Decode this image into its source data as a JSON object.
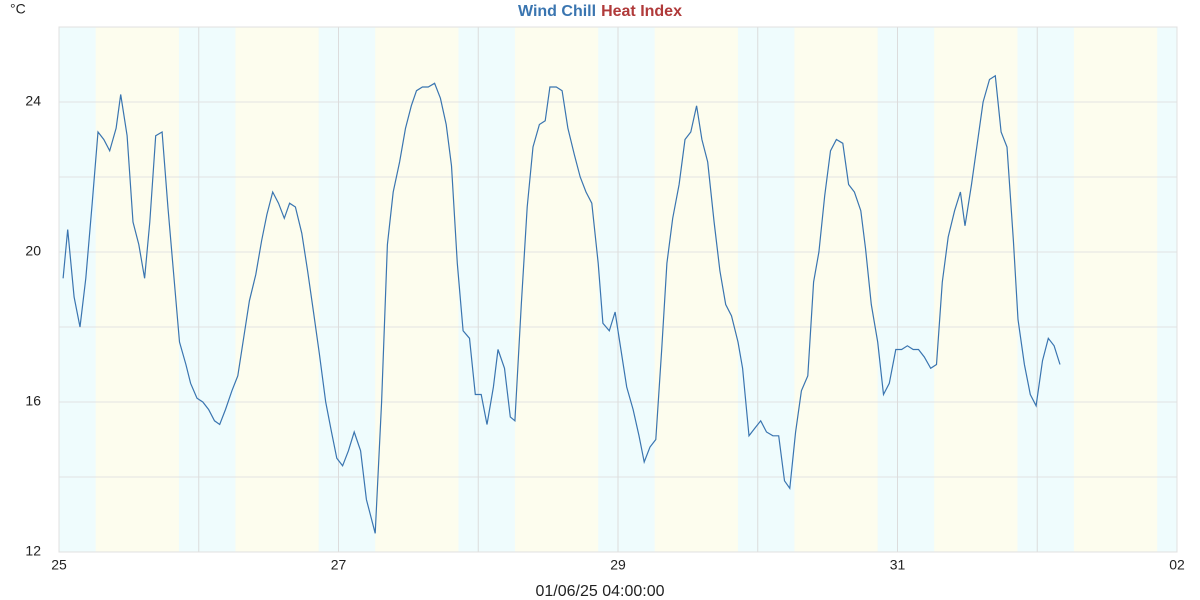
{
  "chart_data": {
    "type": "line",
    "legend": [
      {
        "name": "Wind Chill",
        "color": "#3a75b0"
      },
      {
        "name": "Heat Index",
        "color": "#b03a3a"
      }
    ],
    "y_unit": "°C",
    "x_label": "01/06/25 04:00:00",
    "xlim": [
      0,
      192
    ],
    "xticks": [
      {
        "value": 0,
        "label": "25"
      },
      {
        "value": 48,
        "label": "27"
      },
      {
        "value": 96,
        "label": "29"
      },
      {
        "value": 144,
        "label": "31"
      },
      {
        "value": 192,
        "label": "02"
      }
    ],
    "xminor_ticks": [
      24,
      72,
      120,
      168
    ],
    "ylim": [
      12,
      26
    ],
    "yticks": [
      12,
      16,
      20,
      24
    ],
    "yminor_ticks": [
      14,
      18,
      22,
      26
    ],
    "grid": true,
    "daylight": [
      [
        6.3,
        20.6
      ],
      [
        30.3,
        44.6
      ],
      [
        54.3,
        68.6
      ],
      [
        78.3,
        92.6
      ],
      [
        102.3,
        116.6
      ],
      [
        126.3,
        140.6
      ],
      [
        150.3,
        164.6
      ],
      [
        174.3,
        188.6
      ]
    ],
    "night_color": "#effcfd",
    "day_color": "#fdfdee",
    "series": [
      {
        "name": "Wind Chill",
        "color": "#3a75b0",
        "x": [
          0.7,
          1.5,
          2.6,
          3.6,
          4.6,
          5.7,
          6.7,
          7.7,
          8.7,
          9.8,
          10.6,
          11.7,
          12.7,
          13.7,
          14.7,
          15.6,
          16.6,
          17.7,
          18.7,
          19.7,
          20.7,
          21.8,
          22.6,
          23.7,
          24.7,
          25.7,
          26.7,
          27.6,
          28.6,
          29.7,
          30.7,
          31.7,
          32.7,
          33.8,
          34.8,
          35.7,
          36.7,
          37.7,
          38.7,
          39.6,
          40.6,
          41.7,
          42.7,
          43.7,
          44.7,
          45.8,
          46.8,
          47.7,
          48.7,
          49.7,
          50.7,
          51.8,
          52.8,
          54.3,
          55.4,
          56.4,
          57.4,
          58.5,
          59.5,
          60.5,
          61.4,
          62.4,
          63.4,
          64.5,
          65.5,
          66.5,
          67.4,
          68.4,
          69.4,
          70.5,
          71.5,
          72.5,
          73.5,
          74.6,
          75.4,
          76.5,
          77.5,
          78.3,
          79.4,
          80.4,
          81.4,
          82.5,
          83.5,
          84.3,
          85.4,
          86.4,
          87.4,
          88.5,
          89.5,
          90.5,
          91.5,
          92.6,
          93.4,
          94.5,
          95.5,
          96.5,
          97.5,
          98.6,
          99.6,
          100.5,
          101.5,
          102.5,
          103.5,
          104.4,
          105.4,
          106.5,
          107.5,
          108.5,
          109.5,
          110.4,
          111.4,
          112.5,
          113.5,
          114.5,
          115.5,
          116.6,
          117.4,
          118.5,
          119.5,
          120.5,
          121.5,
          122.6,
          123.6,
          124.6,
          125.5,
          126.5,
          127.5,
          128.6,
          129.6,
          130.5,
          131.5,
          132.5,
          133.5,
          134.6,
          135.6,
          136.6,
          137.7,
          138.5,
          139.5,
          140.6,
          141.6,
          142.6,
          143.7,
          144.7,
          145.7,
          146.7,
          147.6,
          148.6,
          149.7,
          150.7,
          151.7,
          152.7,
          153.8,
          154.8,
          155.6,
          156.7,
          157.7,
          158.7,
          159.8,
          160.8,
          161.8,
          162.8,
          163.9,
          164.7,
          165.8,
          166.8,
          167.8,
          168.9,
          169.9,
          170.9,
          171.9
        ],
        "values": [
          19.3,
          20.6,
          18.8,
          18.0,
          19.3,
          21.3,
          23.2,
          23.0,
          22.7,
          23.3,
          24.2,
          23.1,
          20.8,
          20.2,
          19.3,
          20.8,
          23.1,
          23.2,
          21.2,
          19.4,
          17.6,
          17.0,
          16.5,
          16.1,
          16.0,
          15.8,
          15.5,
          15.4,
          15.8,
          16.3,
          16.7,
          17.7,
          18.7,
          19.4,
          20.3,
          21.0,
          21.6,
          21.3,
          20.9,
          21.3,
          21.2,
          20.5,
          19.5,
          18.4,
          17.3,
          16.0,
          15.2,
          14.5,
          14.3,
          14.7,
          15.2,
          14.7,
          13.4,
          12.5,
          16.0,
          20.2,
          21.6,
          22.4,
          23.3,
          23.9,
          24.3,
          24.4,
          24.4,
          24.5,
          24.1,
          23.4,
          22.3,
          19.7,
          17.9,
          17.7,
          16.2,
          16.2,
          15.4,
          16.4,
          17.4,
          16.9,
          15.6,
          15.5,
          18.6,
          21.2,
          22.8,
          23.4,
          23.5,
          24.4,
          24.4,
          24.3,
          23.3,
          22.6,
          22.0,
          21.6,
          21.3,
          19.7,
          18.1,
          17.9,
          18.4,
          17.4,
          16.4,
          15.8,
          15.1,
          14.4,
          14.8,
          15.0,
          17.4,
          19.7,
          20.9,
          21.8,
          23.0,
          23.2,
          23.9,
          23.0,
          22.4,
          20.8,
          19.5,
          18.6,
          18.3,
          17.6,
          16.9,
          15.1,
          15.3,
          15.5,
          15.2,
          15.1,
          15.1,
          13.9,
          13.7,
          15.2,
          16.3,
          16.7,
          19.2,
          20.0,
          21.5,
          22.7,
          23.0,
          22.9,
          21.8,
          21.6,
          21.1,
          20.1,
          18.6,
          17.6,
          16.2,
          16.5,
          17.4,
          17.4,
          17.5,
          17.4,
          17.4,
          17.2,
          16.9,
          17.0,
          19.2,
          20.4,
          21.1,
          21.6,
          20.7,
          21.8,
          22.9,
          24.0,
          24.6,
          24.7,
          23.2,
          22.8,
          20.3,
          18.2,
          17.0,
          16.2,
          15.9,
          17.1,
          17.7,
          17.5,
          17.0
        ]
      }
    ]
  }
}
